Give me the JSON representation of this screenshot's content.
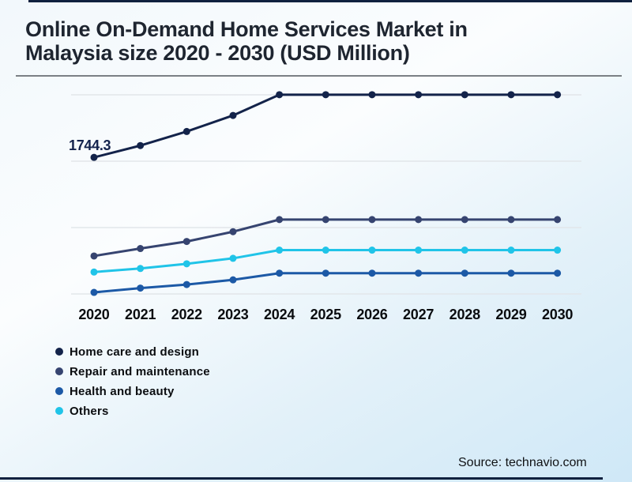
{
  "page": {
    "title_line1": "Online On-Demand Home Services Market in",
    "title_line2": "Malaysia size 2020 - 2030 (USD Million)",
    "source": "Source: technavio.com"
  },
  "chart_data": {
    "type": "line",
    "title": "Online On-Demand Home Services Market in Malaysia size 2020 - 2030 (USD Million)",
    "x": [
      "2020",
      "2021",
      "2022",
      "2023",
      "2024",
      "2025",
      "2026",
      "2027",
      "2028",
      "2029",
      "2030"
    ],
    "series": [
      {
        "name": "Home care and design",
        "color": "#13234a",
        "values": [
          1744.3,
          1895,
          2075,
          2280,
          2545,
          2545,
          2545,
          2545,
          2545,
          2545,
          2545
        ]
      },
      {
        "name": "Repair and maintenance",
        "color": "#364470",
        "values": [
          485,
          580,
          670,
          795,
          950,
          950,
          950,
          950,
          950,
          950,
          950
        ]
      },
      {
        "name": "Health and beauty",
        "color": "#1c59a6",
        "values": [
          20,
          75,
          120,
          180,
          265,
          265,
          265,
          265,
          265,
          265,
          265
        ]
      },
      {
        "name": "Others",
        "color": "#20c4e8",
        "values": [
          280,
          325,
          385,
          455,
          560,
          560,
          560,
          560,
          560,
          560,
          560
        ]
      }
    ],
    "annotation": {
      "text": "1744.3",
      "series": "Home care and design",
      "x": "2020"
    },
    "legend_position": "bottom-left",
    "grid": "horizontal",
    "marker": "circle",
    "ylim": [
      0,
      2600
    ],
    "xlabel": "",
    "ylabel": ""
  }
}
